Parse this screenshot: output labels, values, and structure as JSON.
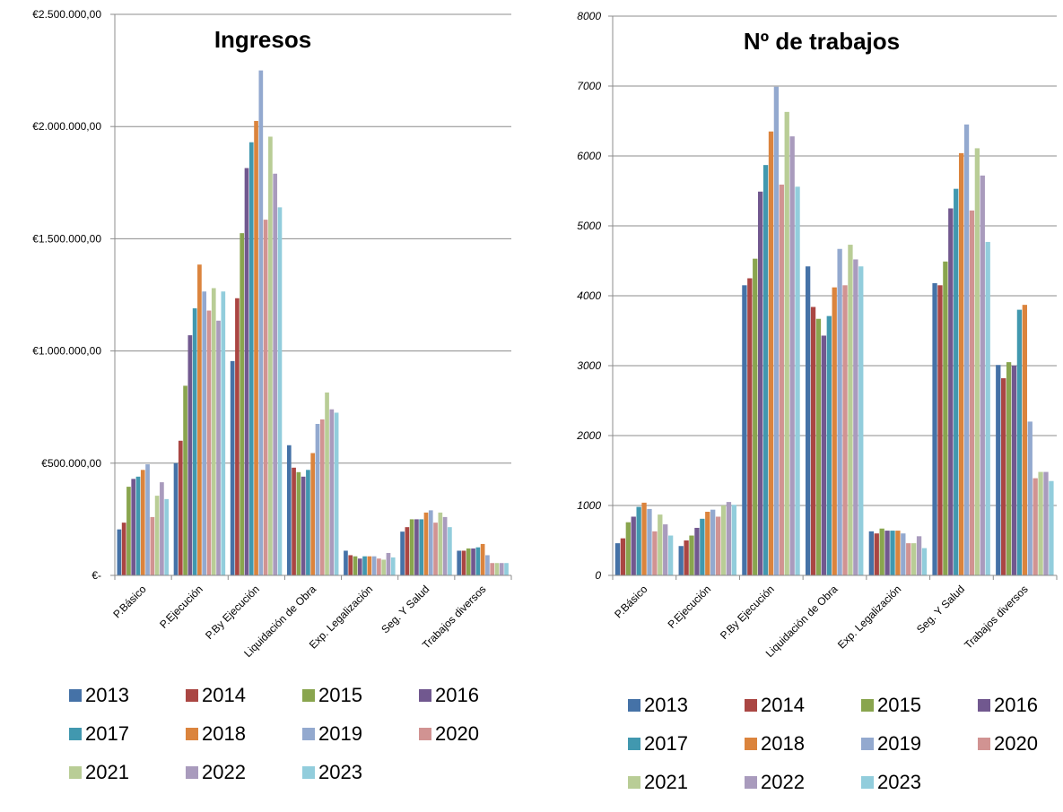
{
  "chart_data": [
    {
      "type": "bar",
      "title": "Ingresos",
      "categories": [
        "P.Básico",
        "P.Ejecución",
        "P.By Ejecución",
        "Liquidación de Obra",
        "Exp. Legalización",
        "Seg. Y Salud",
        "Trabajos diversos"
      ],
      "ylim": [
        0,
        2500000
      ],
      "yticks": [
        0,
        500000,
        1000000,
        1500000,
        2000000,
        2500000
      ],
      "ytick_labels": [
        "€-",
        "€500.000,00",
        "€1.000.000,00",
        "€1.500.000,00",
        "€2.000.000,00",
        "€2.500.000,00"
      ],
      "grid": true,
      "legend": "bottom",
      "series": [
        {
          "name": "2013",
          "color": "#4572A7",
          "values": [
            205000,
            500000,
            955000,
            580000,
            110000,
            195000,
            110000
          ]
        },
        {
          "name": "2014",
          "color": "#AA4643",
          "values": [
            235000,
            600000,
            1235000,
            480000,
            90000,
            215000,
            110000
          ]
        },
        {
          "name": "2015",
          "color": "#89A54E",
          "values": [
            395000,
            845000,
            1525000,
            460000,
            85000,
            250000,
            120000
          ]
        },
        {
          "name": "2016",
          "color": "#71588F",
          "values": [
            430000,
            1070000,
            1815000,
            440000,
            75000,
            250000,
            120000
          ]
        },
        {
          "name": "2017",
          "color": "#4198AF",
          "values": [
            440000,
            1190000,
            1930000,
            470000,
            85000,
            250000,
            125000
          ]
        },
        {
          "name": "2018",
          "color": "#DB843D",
          "values": [
            470000,
            1385000,
            2025000,
            545000,
            85000,
            280000,
            140000
          ]
        },
        {
          "name": "2019",
          "color": "#93A9CF",
          "values": [
            495000,
            1265000,
            2250000,
            675000,
            85000,
            290000,
            90000
          ]
        },
        {
          "name": "2020",
          "color": "#D19392",
          "values": [
            260000,
            1180000,
            1585000,
            695000,
            75000,
            235000,
            55000
          ]
        },
        {
          "name": "2021",
          "color": "#B9CD96",
          "values": [
            355000,
            1280000,
            1955000,
            815000,
            70000,
            280000,
            55000
          ]
        },
        {
          "name": "2022",
          "color": "#A99BBD",
          "values": [
            415000,
            1135000,
            1790000,
            740000,
            100000,
            260000,
            55000
          ]
        },
        {
          "name": "2023",
          "color": "#92CDDC",
          "values": [
            340000,
            1265000,
            1640000,
            725000,
            80000,
            215000,
            55000
          ]
        }
      ]
    },
    {
      "type": "bar",
      "title": "Nº de trabajos",
      "categories": [
        "P.Básico",
        "P.Ejecución",
        "P.By Ejecución",
        "Liquidación de Obra",
        "Exp. Legalización",
        "Seg. Y Salud",
        "Trabajos diversos"
      ],
      "ylim": [
        0,
        8000
      ],
      "yticks": [
        0,
        1000,
        2000,
        3000,
        4000,
        5000,
        6000,
        7000,
        8000
      ],
      "ytick_labels": [
        "0",
        "1000",
        "2000",
        "3000",
        "4000",
        "5000",
        "6000",
        "7000",
        "8000"
      ],
      "grid": true,
      "legend": "bottom",
      "series": [
        {
          "name": "2013",
          "color": "#4572A7",
          "values": [
            460,
            420,
            4150,
            4420,
            630,
            4180,
            3010
          ]
        },
        {
          "name": "2014",
          "color": "#AA4643",
          "values": [
            530,
            500,
            4250,
            3840,
            600,
            4150,
            2820
          ]
        },
        {
          "name": "2015",
          "color": "#89A54E",
          "values": [
            760,
            570,
            4530,
            3670,
            670,
            4490,
            3050
          ]
        },
        {
          "name": "2016",
          "color": "#71588F",
          "values": [
            840,
            680,
            5490,
            3430,
            640,
            5250,
            3000
          ]
        },
        {
          "name": "2017",
          "color": "#4198AF",
          "values": [
            980,
            810,
            5870,
            3710,
            640,
            5530,
            3800
          ]
        },
        {
          "name": "2018",
          "color": "#DB843D",
          "values": [
            1040,
            910,
            6350,
            4120,
            640,
            6040,
            3870
          ]
        },
        {
          "name": "2019",
          "color": "#93A9CF",
          "values": [
            950,
            940,
            6990,
            4670,
            600,
            6450,
            2200
          ]
        },
        {
          "name": "2020",
          "color": "#D19392",
          "values": [
            630,
            840,
            5590,
            4150,
            460,
            5220,
            1390
          ]
        },
        {
          "name": "2021",
          "color": "#B9CD96",
          "values": [
            870,
            1000,
            6630,
            4730,
            460,
            6110,
            1480
          ]
        },
        {
          "name": "2022",
          "color": "#A99BBD",
          "values": [
            730,
            1050,
            6280,
            4520,
            560,
            5720,
            1480
          ]
        },
        {
          "name": "2023",
          "color": "#92CDDC",
          "values": [
            570,
            1010,
            5560,
            4420,
            390,
            4770,
            1350
          ]
        }
      ]
    }
  ]
}
